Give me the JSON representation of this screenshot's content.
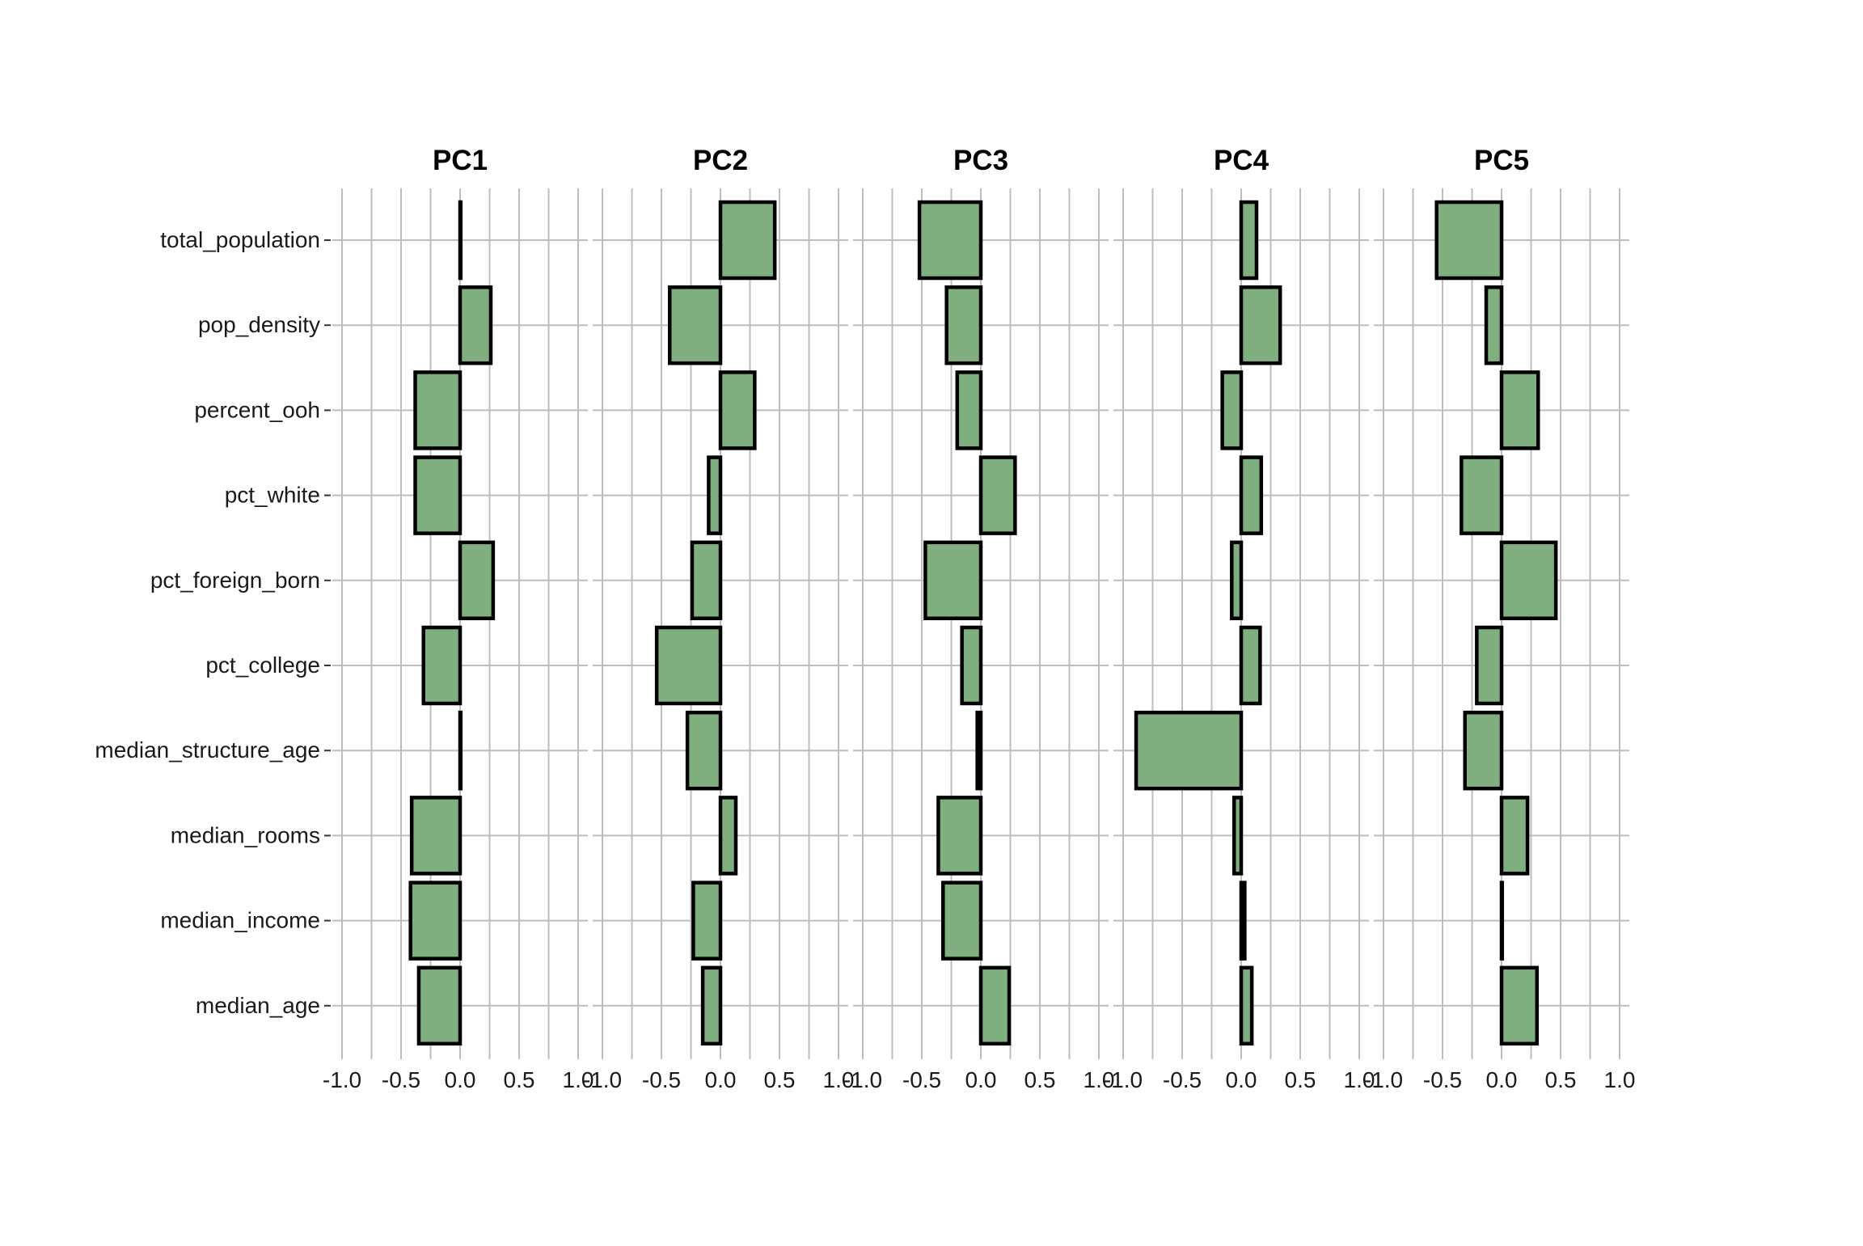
{
  "chart_data": {
    "type": "bar",
    "orientation": "horizontal",
    "facet_titles": [
      "PC1",
      "PC2",
      "PC3",
      "PC4",
      "PC5"
    ],
    "categories": [
      "total_population",
      "pop_density",
      "percent_ooh",
      "pct_white",
      "pct_foreign_born",
      "pct_college",
      "median_structure_age",
      "median_rooms",
      "median_income",
      "median_age"
    ],
    "series": [
      {
        "name": "PC1",
        "values": [
          0.0,
          0.26,
          -0.38,
          -0.38,
          0.28,
          -0.31,
          0.0,
          -0.41,
          -0.42,
          -0.35
        ]
      },
      {
        "name": "PC2",
        "values": [
          0.46,
          -0.43,
          0.29,
          -0.1,
          -0.24,
          -0.54,
          -0.28,
          0.13,
          -0.23,
          -0.15
        ]
      },
      {
        "name": "PC3",
        "values": [
          -0.52,
          -0.29,
          -0.2,
          0.29,
          -0.47,
          -0.16,
          -0.03,
          -0.36,
          -0.32,
          0.24
        ]
      },
      {
        "name": "PC4",
        "values": [
          0.13,
          0.33,
          -0.16,
          0.17,
          -0.08,
          0.16,
          -0.89,
          -0.06,
          0.03,
          0.09
        ]
      },
      {
        "name": "PC5",
        "values": [
          -0.55,
          -0.13,
          0.31,
          -0.34,
          0.46,
          -0.21,
          -0.31,
          0.22,
          0.0,
          0.3
        ]
      }
    ],
    "x_ticks": [
      "-1.0",
      "-0.5",
      "0.0",
      "0.5",
      "1.0"
    ],
    "xlim": [
      -1.0,
      1.0
    ],
    "xlabel": "",
    "ylabel": "",
    "grid": true,
    "bar_fill": "#7faf7f",
    "bar_outline": "#000000",
    "grid_color": "#bdbdbd"
  }
}
